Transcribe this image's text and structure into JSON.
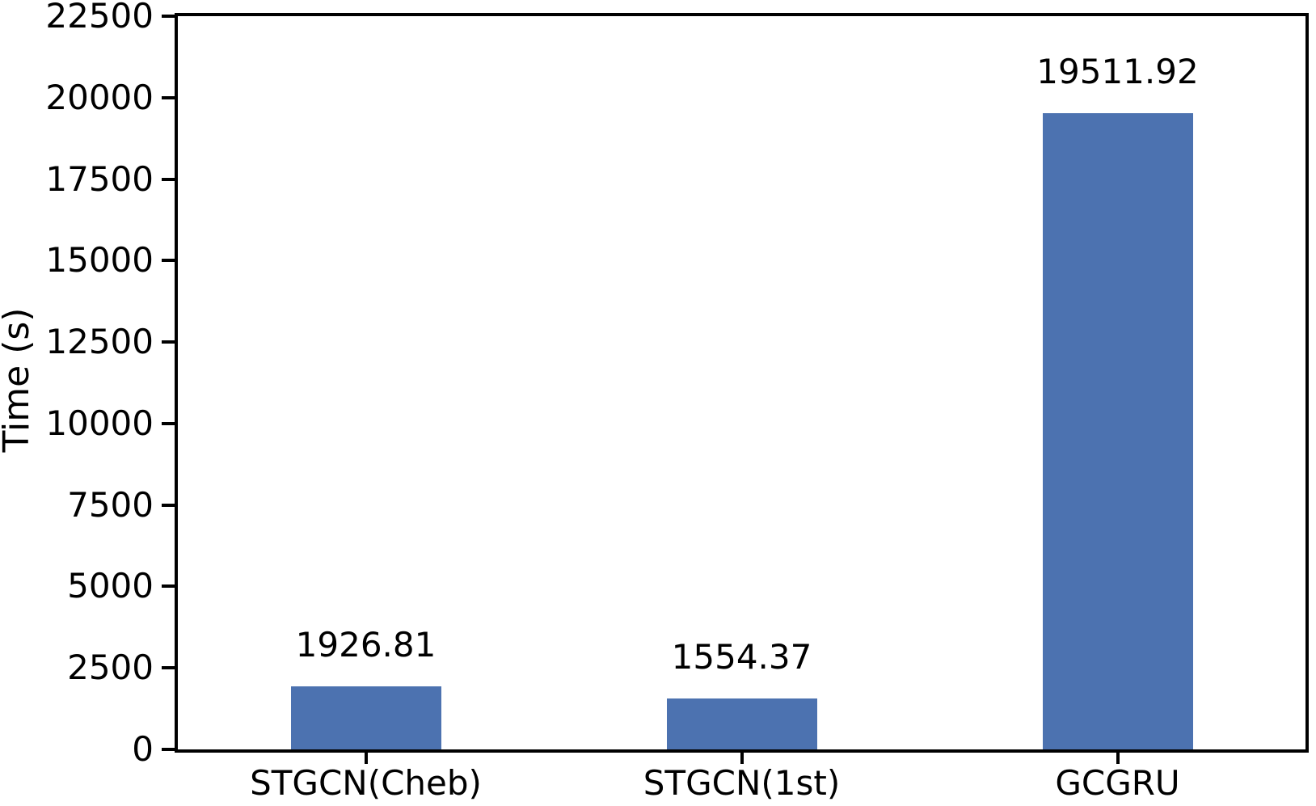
{
  "chart_data": {
    "type": "bar",
    "categories": [
      "STGCN(Cheb)",
      "STGCN(1st)",
      "GCGRU"
    ],
    "values": [
      1926.81,
      1554.37,
      19511.92
    ],
    "bar_labels": [
      "1926.81",
      "1554.37",
      "19511.92"
    ],
    "title": "",
    "xlabel": "",
    "ylabel": "Time (s)",
    "ylim": [
      0,
      22500
    ],
    "yticks": [
      0,
      2500,
      5000,
      7500,
      10000,
      12500,
      15000,
      17500,
      20000,
      22500
    ],
    "grid": false,
    "legend": null,
    "colors": {
      "bar": "#4C72B0",
      "axis": "#000000",
      "text": "#000000",
      "background": "#ffffff"
    }
  }
}
